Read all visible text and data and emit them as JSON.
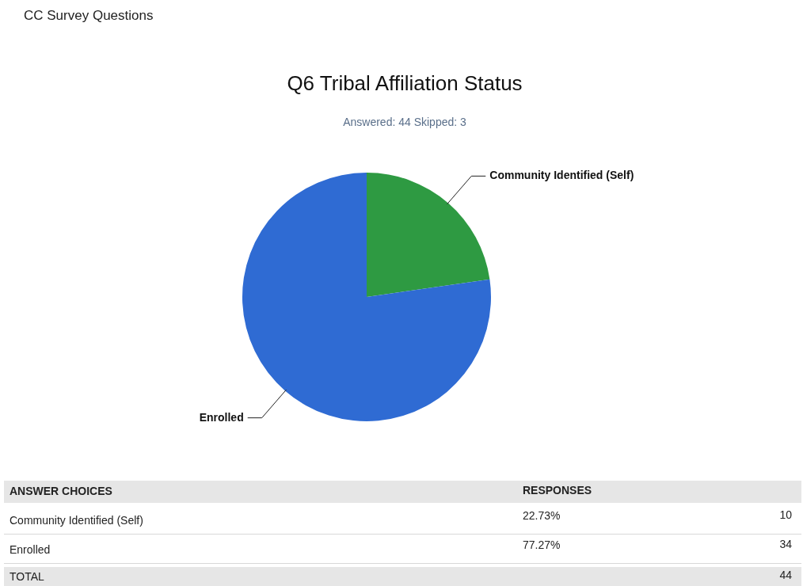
{
  "chart_data": {
    "type": "pie",
    "title": "Q6 Tribal Affiliation Status",
    "subtitle": "Answered: 44    Skipped: 3",
    "categories": [
      "Community Identified (Self)",
      "Enrolled"
    ],
    "values": [
      22.73,
      77.27
    ],
    "colors": [
      "#2e9a42",
      "#2f6bd3"
    ],
    "annotations": [
      "CC Survey Questions",
      "ANSWER CHOICES",
      "RESPONSES",
      "22.73%",
      "10",
      "77.27%",
      "34",
      "TOTAL",
      "44"
    ]
  }
}
